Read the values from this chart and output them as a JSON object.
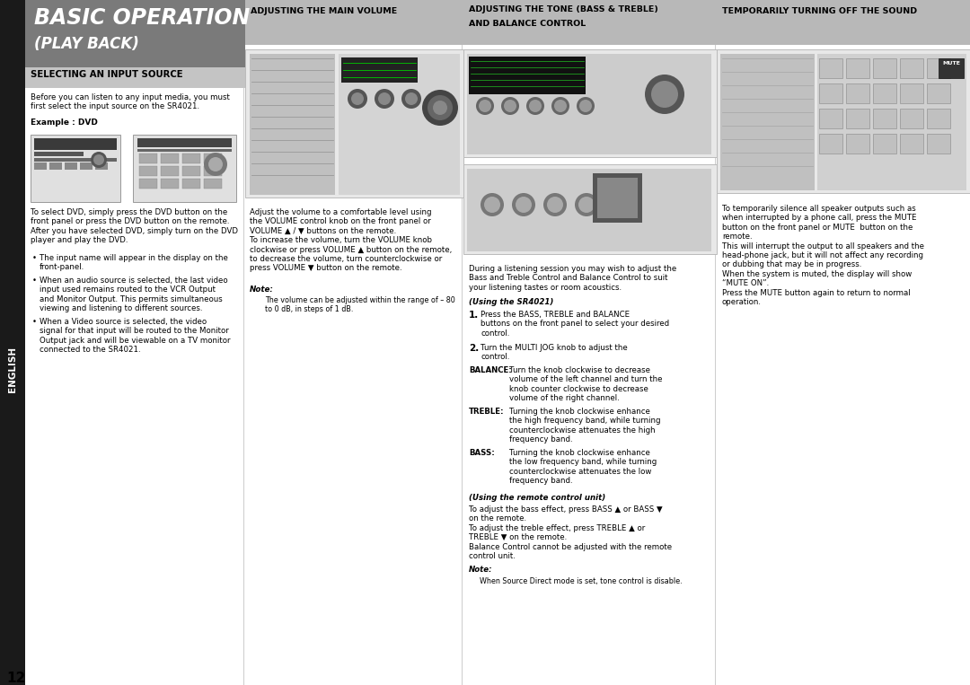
{
  "title_main": "BASIC OPERATION",
  "title_sub": "(PLAY BACK)",
  "english_label": "ENGLISH",
  "section1_title": "SELECTING AN INPUT SOURCE",
  "section2_title": "ADJUSTING THE MAIN VOLUME",
  "section3_title_l1": "ADJUSTING THE TONE (BASS & TREBLE)",
  "section3_title_l2": "AND BALANCE CONTROL",
  "section4_title": "TEMPORARILY TURNING OFF THE SOUND",
  "page_number": "12",
  "bg_color": "#ffffff",
  "header_gray_bg": "#7a7a7a",
  "section_header_bg": "#b8b8b8",
  "english_bg": "#1a1a1a",
  "english_color": "#ffffff",
  "title_color": "#ffffff",
  "body_text_color": "#000000",
  "body_fontsize": 6.2,
  "note_fontsize": 5.8,
  "sec1_intro": "Before you can listen to any input media, you must\nfirst select the input source on the SR4021.",
  "sec1_example": "Example : DVD",
  "sec1_body": "To select DVD, simply press the DVD button on the\nfront panel or press the DVD button on the remote.\nAfter you have selected DVD, simply turn on the DVD\nplayer and play the DVD.",
  "sec1_b1": "The input name will appear in the display on the\nfront-panel.",
  "sec1_b2": "When an audio source is selected, the last video\ninput used remains routed to the VCR Output\nand Monitor Output. This permits simultaneous\nviewing and listening to different sources.",
  "sec1_b3": "When a Video source is selected, the video\nsignal for that input will be routed to the Monitor\nOutput jack and will be viewable on a TV monitor\nconnected to the SR4021.",
  "sec2_body": "Adjust the volume to a comfortable level using\nthe VOLUME control knob on the front panel or\nVOLUME ▲ / ▼ buttons on the remote.\nTo increase the volume, turn the VOLUME knob\nclockwise or press VOLUME ▲ button on the remote,\nto decrease the volume, turn counterclockwise or\npress VOLUME ▼ button on the remote.",
  "sec2_note_label": "Note:",
  "sec2_note_body": "The volume can be adjusted within the range of – 80\nto 0 dB, in steps of 1 dB.",
  "sec3_intro": "During a listening session you may wish to adjust the\nBass and Treble Control and Balance Control to suit\nyour listening tastes or room acoustics.",
  "sec3_sr_label": "(Using the SR4021)",
  "sec3_step1": "Press the BASS, TREBLE and BALANCE\nbuttons on the front panel to select your desired\ncontrol.",
  "sec3_step2": "Turn the MULTI JOG knob to adjust the\ncontrol.",
  "sec3_bal_label": "BALANCE:",
  "sec3_bal_body": "Turn the knob clockwise to decrease\nvolume of the left channel and turn the\nknob counter clockwise to decrease\nvolume of the right channel.",
  "sec3_tre_label": "TREBLE:",
  "sec3_tre_body": "Turning the knob clockwise enhance\nthe high frequency band, while turning\ncounterclockwise attenuates the high\nfrequency band.",
  "sec3_bas_label": "BASS:",
  "sec3_bas_body": "Turning the knob clockwise enhance\nthe low frequency band, while turning\ncounterclockwise attenuates the low\nfrequency band.",
  "sec3_rem_label": "(Using the remote control unit)",
  "sec3_rem_body": "To adjust the bass effect, press BASS ▲ or BASS ▼\non the remote.\nTo adjust the treble effect, press TREBLE ▲ or\nTREBLE ▼ on the remote.\nBalance Control cannot be adjusted with the remote\ncontrol unit.",
  "sec3_note_label": "Note:",
  "sec3_note_body": "When Source Direct mode is set, tone control is disable.",
  "sec4_body": "To temporarily silence all speaker outputs such as\nwhen interrupted by a phone call, press the MUTE\nbutton on the front panel or MUTE  button on the\nremote.\nThis will interrupt the output to all speakers and the\nhead-phone jack, but it will not affect any recording\nor dubbing that may be in progress.\nWhen the system is muted, the display will show\n“MUTE ON”.\nPress the MUTE button again to return to normal\noperation."
}
